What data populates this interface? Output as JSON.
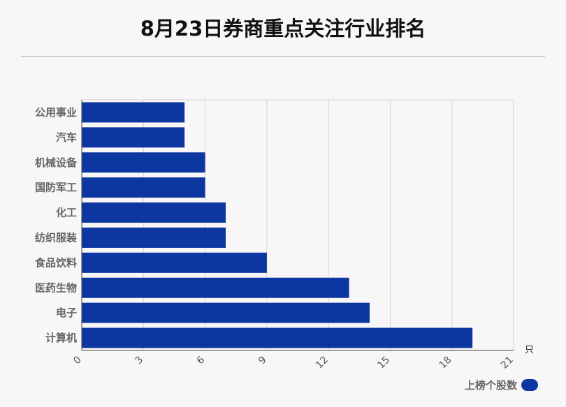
{
  "title": "8月23日券商重点关注行业排名",
  "chart_data": {
    "type": "bar",
    "orientation": "horizontal",
    "categories": [
      "公用事业",
      "汽车",
      "机械设备",
      "国防军工",
      "化工",
      "纺织服装",
      "食品饮料",
      "医药生物",
      "电子",
      "计算机"
    ],
    "series": [
      {
        "name": "上榜个股数",
        "values": [
          5,
          5,
          6,
          6,
          7,
          7,
          9,
          13,
          14,
          19
        ]
      }
    ],
    "xlim": [
      0,
      21
    ],
    "xticks": [
      0,
      3,
      6,
      9,
      12,
      15,
      18,
      21
    ],
    "unit": "只",
    "grid": true,
    "legend": "bottom-right",
    "bar_color": "#0d37a0"
  }
}
